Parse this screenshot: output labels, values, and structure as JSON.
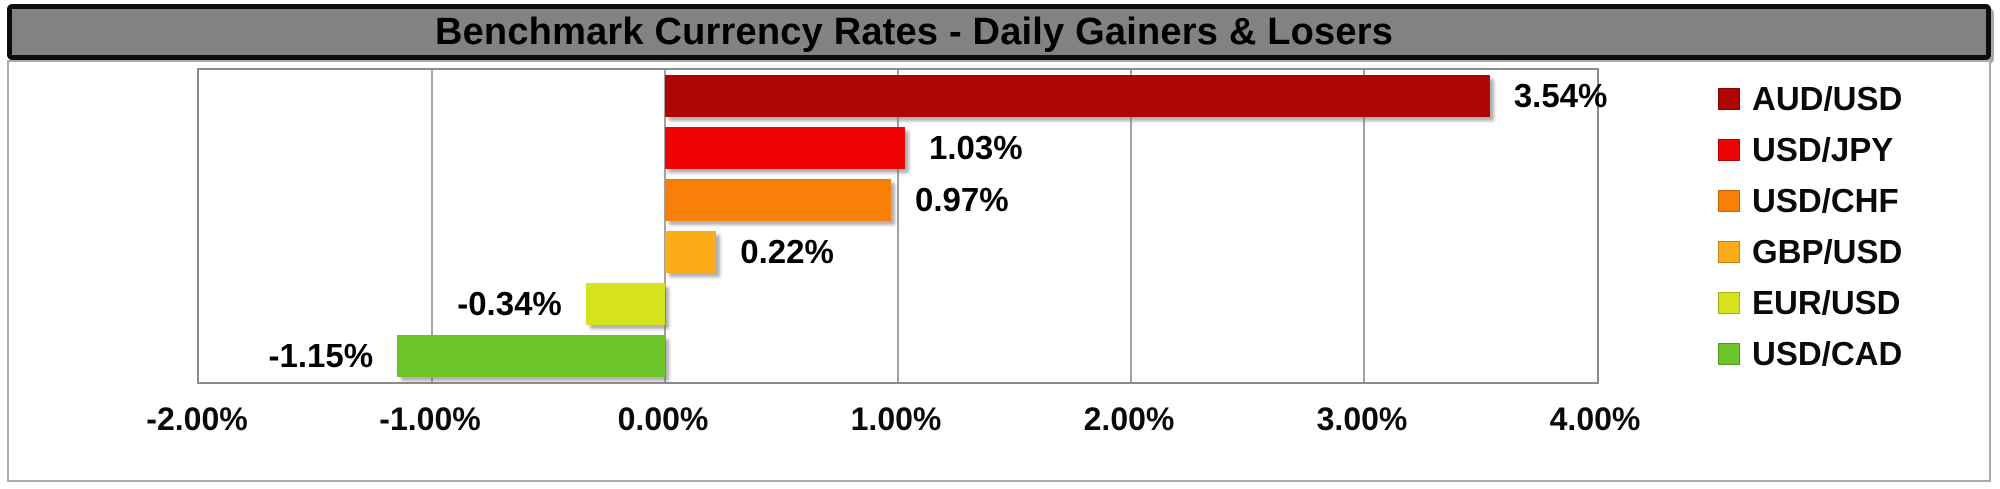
{
  "window": {
    "title": "Benchmark Currency Rates - Daily Gainers & Losers"
  },
  "chart_data": {
    "type": "bar",
    "orientation": "horizontal",
    "title": "Benchmark Currency Rates - Daily Gainers & Losers",
    "categories": [
      "AUD/USD",
      "USD/JPY",
      "USD/CHF",
      "GBP/USD",
      "EUR/USD",
      "USD/CAD"
    ],
    "values": [
      3.54,
      1.03,
      0.97,
      0.22,
      -0.34,
      -1.15
    ],
    "value_labels": [
      "3.54%",
      "1.03%",
      "0.97%",
      "0.22%",
      "-0.34%",
      "-1.15%"
    ],
    "colors": [
      "#b00505",
      "#ee0404",
      "#f98008",
      "#fbac18",
      "#d7e21e",
      "#6cc42a"
    ],
    "xlim": [
      -2,
      4
    ],
    "x_ticks": [
      -2,
      -1,
      0,
      1,
      2,
      3,
      4
    ],
    "x_tick_labels": [
      "-2.00%",
      "-1.00%",
      "0.00%",
      "1.00%",
      "2.00%",
      "3.00%",
      "4.00%"
    ],
    "grid": "vertical-major",
    "legend_position": "right",
    "legend": [
      "AUD/USD",
      "USD/JPY",
      "USD/CHF",
      "GBP/USD",
      "EUR/USD",
      "USD/CAD"
    ],
    "title_bar_bg": "#828282",
    "title_bar_border": "#0d0d0d"
  }
}
